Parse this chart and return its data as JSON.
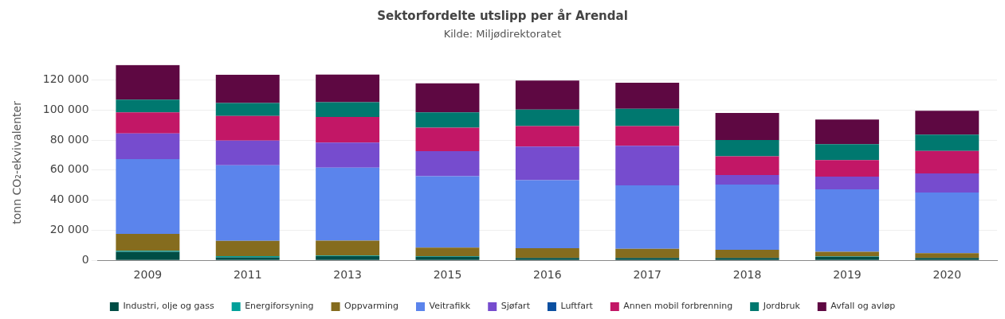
{
  "chart_data": {
    "type": "bar",
    "title": "Sektorfordelte utslipp per år Arendal",
    "subtitle": "Kilde: Miljødirektoratet",
    "ylabel": "tonn CO₂-ekvivalenter",
    "categories": [
      "2009",
      "2011",
      "2013",
      "2015",
      "2016",
      "2017",
      "2018",
      "2019",
      "2020"
    ],
    "stacked": true,
    "grid": "y",
    "legend": "bottom",
    "ylim": [
      0,
      130000
    ],
    "yticks": [
      {
        "value": 0,
        "label": "0"
      },
      {
        "value": 20000,
        "label": "20 000"
      },
      {
        "value": 40000,
        "label": "40 000"
      },
      {
        "value": 60000,
        "label": "60 000"
      },
      {
        "value": 80000,
        "label": "80 000"
      },
      {
        "value": 100000,
        "label": "100 000"
      },
      {
        "value": 120000,
        "label": "120 000"
      }
    ],
    "series": [
      {
        "name": "Industri, olje og gass",
        "color": "#004d45",
        "values": [
          5700,
          1900,
          2800,
          2300,
          1500,
          1500,
          1500,
          2300,
          1500
        ]
      },
      {
        "name": "Energiforsyning",
        "color": "#00a09a",
        "values": [
          600,
          900,
          400,
          400,
          null,
          null,
          null,
          300,
          null
        ]
      },
      {
        "name": "Oppvarming",
        "color": "#856c1e",
        "values": [
          11300,
          10200,
          9900,
          5800,
          6600,
          6100,
          5500,
          3100,
          3200
        ]
      },
      {
        "name": "Veitrafikk",
        "color": "#5b84ec",
        "values": [
          49700,
          50200,
          48500,
          47400,
          45200,
          42200,
          43400,
          41500,
          40400
        ]
      },
      {
        "name": "Sjøfart",
        "color": "#764cce",
        "values": [
          17100,
          16500,
          16700,
          16700,
          22300,
          26400,
          6300,
          8500,
          12700
        ]
      },
      {
        "name": "Luftfart",
        "color": "#0b4fa0",
        "values": [
          0,
          0,
          0,
          0,
          0,
          0,
          0,
          0,
          0
        ]
      },
      {
        "name": "Annen mobil forbrenning",
        "color": "#c21766",
        "values": [
          14000,
          16300,
          17100,
          15600,
          13700,
          13100,
          12500,
          11000,
          15000
        ]
      },
      {
        "name": "Jordbruk",
        "color": "#00786f",
        "values": [
          8500,
          8600,
          9800,
          10200,
          11000,
          11500,
          10800,
          10500,
          10800
        ]
      },
      {
        "name": "Avfall og avløp",
        "color": "#5e0842",
        "values": [
          23000,
          18900,
          18400,
          19300,
          19300,
          17300,
          18000,
          16500,
          15900
        ]
      }
    ]
  }
}
